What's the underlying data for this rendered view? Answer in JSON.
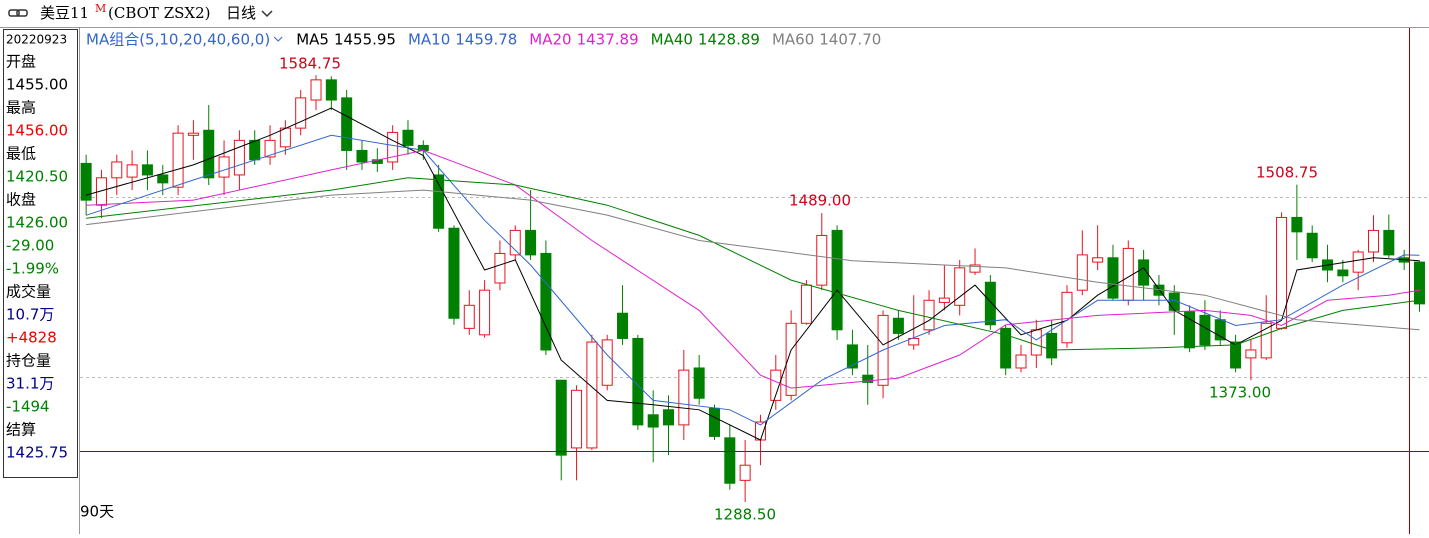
{
  "header": {
    "symbol": "美豆11",
    "mark": "M",
    "code": "(CBOT ZSX2)",
    "period": "日线"
  },
  "info_panel": {
    "date": "20220923",
    "rows": [
      {
        "label": "开盘",
        "value": "1455.00"
      },
      {
        "label": "最高",
        "value": "1456.00"
      },
      {
        "label": "最低",
        "value": "1420.50"
      },
      {
        "label": "收盘",
        "value": "1426.00",
        "extra": [
          "-29.00",
          "-1.99%"
        ]
      },
      {
        "label": "成交量",
        "value": "10.7万",
        "extra": [
          "+4828"
        ]
      },
      {
        "label": "持仓量",
        "value": "31.1万",
        "extra": [
          "-1494"
        ]
      },
      {
        "label": "结算",
        "value": "1425.75"
      }
    ]
  },
  "chart_data": {
    "type": "candlestick",
    "indicator": "MA组合(5,10,20,40,60,0)",
    "footer": "90天",
    "ylim": [
      1272.5,
      1617.5
    ],
    "xlim": [
      -0.4,
      88.6
    ],
    "up_color": "#e8141e",
    "down_color": "#008000",
    "annotations": [
      {
        "text": "1584.75",
        "color": "#d0021b"
      },
      {
        "text": "1489.00",
        "color": "#d0021b"
      },
      {
        "text": "1508.75",
        "color": "#d0021b"
      },
      {
        "text": "1373.00",
        "color": "#008000"
      },
      {
        "text": "1288.50",
        "color": "#008000"
      }
    ],
    "candles": [
      [
        1523.5,
        1529.5,
        1487.5,
        1498
      ],
      [
        1494.5,
        1519,
        1485.5,
        1513.5
      ],
      [
        1513.5,
        1529.5,
        1501.5,
        1524.5
      ],
      [
        1514,
        1532.5,
        1505,
        1522.5
      ],
      [
        1522.5,
        1532.5,
        1505,
        1515.5
      ],
      [
        1515.5,
        1522.5,
        1501.5,
        1510
      ],
      [
        1507,
        1550,
        1501.5,
        1544.5
      ],
      [
        1543,
        1553.5,
        1526,
        1544.5
      ],
      [
        1546.5,
        1564,
        1508.5,
        1513.5
      ],
      [
        1514,
        1539.5,
        1501.5,
        1528
      ],
      [
        1515.5,
        1546.5,
        1505,
        1539.5
      ],
      [
        1539.5,
        1546.5,
        1522.5,
        1526
      ],
      [
        1528,
        1550,
        1522.5,
        1539.5
      ],
      [
        1535,
        1553.5,
        1529.5,
        1548
      ],
      [
        1548,
        1574.5,
        1543,
        1569
      ],
      [
        1567.5,
        1584.75,
        1560.5,
        1581.5
      ],
      [
        1581.5,
        1584,
        1560.5,
        1567.5
      ],
      [
        1569,
        1574.5,
        1519,
        1532.5
      ],
      [
        1532.5,
        1539.5,
        1519,
        1524.5
      ],
      [
        1526,
        1534,
        1517.5,
        1523.5
      ],
      [
        1524.5,
        1550,
        1519,
        1545
      ],
      [
        1546.5,
        1553.5,
        1529.5,
        1536
      ],
      [
        1536,
        1539.5,
        1526,
        1532.5
      ],
      [
        1515.5,
        1522.5,
        1476,
        1478.5
      ],
      [
        1478.5,
        1480.5,
        1411.5,
        1416
      ],
      [
        1409,
        1435.5,
        1404.5,
        1425
      ],
      [
        1404.5,
        1442.5,
        1402.5,
        1435.5
      ],
      [
        1440.5,
        1470,
        1435.5,
        1461
      ],
      [
        1460,
        1480.5,
        1456.5,
        1477
      ],
      [
        1477,
        1505,
        1456.5,
        1460
      ],
      [
        1461,
        1470,
        1390.5,
        1394
      ],
      [
        1373,
        1373,
        1303.5,
        1321
      ],
      [
        1326,
        1369.5,
        1303.5,
        1366
      ],
      [
        1326,
        1404.5,
        1324.5,
        1399.5
      ],
      [
        1369.5,
        1404.5,
        1366,
        1401
      ],
      [
        1419.5,
        1439,
        1397.5,
        1402
      ],
      [
        1402,
        1404.5,
        1338.5,
        1342
      ],
      [
        1349,
        1366,
        1316,
        1340.5
      ],
      [
        1352.5,
        1362.5,
        1321,
        1342
      ],
      [
        1342,
        1394,
        1331.5,
        1380
      ],
      [
        1381.5,
        1390.5,
        1356,
        1360.5
      ],
      [
        1353.5,
        1356,
        1331.5,
        1334
      ],
      [
        1333,
        1342,
        1297,
        1301.5
      ],
      [
        1303.5,
        1331.5,
        1288.5,
        1314
      ],
      [
        1331.5,
        1349,
        1314,
        1344
      ],
      [
        1359,
        1390.5,
        1352.5,
        1380
      ],
      [
        1362.5,
        1421.5,
        1359,
        1412.5
      ],
      [
        1412.5,
        1442.5,
        1411.5,
        1439
      ],
      [
        1439,
        1489,
        1435.5,
        1473.5
      ],
      [
        1477,
        1480.5,
        1401,
        1408
      ],
      [
        1397.5,
        1408,
        1376.5,
        1381.5
      ],
      [
        1376.5,
        1397.5,
        1356,
        1371.5
      ],
      [
        1369.5,
        1421.5,
        1360.5,
        1418
      ],
      [
        1416,
        1421.5,
        1401,
        1405.5
      ],
      [
        1397.5,
        1432,
        1394,
        1402
      ],
      [
        1408,
        1435.5,
        1404.5,
        1428.5
      ],
      [
        1427,
        1453,
        1421.5,
        1430
      ],
      [
        1425,
        1456.5,
        1418,
        1451
      ],
      [
        1448,
        1464.5,
        1446,
        1453
      ],
      [
        1441,
        1446,
        1408,
        1411.5
      ],
      [
        1409,
        1411.5,
        1376.5,
        1381.5
      ],
      [
        1381.5,
        1397.5,
        1378.5,
        1390.5
      ],
      [
        1390.5,
        1415,
        1381.5,
        1408
      ],
      [
        1405.5,
        1415,
        1383.5,
        1388.5
      ],
      [
        1399,
        1439,
        1395.5,
        1434
      ],
      [
        1435.5,
        1477,
        1432,
        1460
      ],
      [
        1455,
        1480.5,
        1449.5,
        1458
      ],
      [
        1458,
        1467,
        1428.5,
        1430
      ],
      [
        1428.5,
        1470,
        1425,
        1464.5
      ],
      [
        1456.5,
        1463.5,
        1428.5,
        1439
      ],
      [
        1439,
        1446,
        1425,
        1432
      ],
      [
        1433.5,
        1439,
        1404.5,
        1421.5
      ],
      [
        1420.5,
        1425,
        1392.5,
        1395.5
      ],
      [
        1418,
        1428.5,
        1394,
        1397.5
      ],
      [
        1415,
        1421.5,
        1397.5,
        1401
      ],
      [
        1399.5,
        1404.5,
        1378.5,
        1381.5
      ],
      [
        1388.5,
        1401,
        1373,
        1394
      ],
      [
        1388.5,
        1432,
        1387,
        1412.5
      ],
      [
        1409,
        1489.5,
        1408,
        1486
      ],
      [
        1486,
        1508.75,
        1456.5,
        1476
      ],
      [
        1475,
        1480.5,
        1455,
        1458
      ],
      [
        1456.5,
        1467,
        1441,
        1449.5
      ],
      [
        1449.5,
        1456.5,
        1441,
        1445.5
      ],
      [
        1448,
        1463.5,
        1435.5,
        1462
      ],
      [
        1462,
        1487.5,
        1455,
        1477
      ],
      [
        1477,
        1488,
        1458,
        1460
      ],
      [
        1458,
        1463.5,
        1449.5,
        1455
      ],
      [
        1455,
        1456,
        1420.5,
        1426
      ],
      [
        1424,
        1432,
        1420,
        1428
      ]
    ],
    "series": [
      {
        "name": "MA5",
        "last": "1455.95",
        "color": "#000000",
        "x": [
          0,
          7,
          12,
          16,
          20,
          22,
          26,
          28,
          31,
          34,
          37,
          40,
          44,
          46,
          49,
          52,
          55,
          58,
          61,
          64,
          66,
          69,
          71,
          75,
          78,
          79,
          84,
          87
        ],
        "values": [
          1501.5,
          1522.5,
          1543,
          1562,
          1539.5,
          1529,
          1449.5,
          1456.5,
          1387,
          1359,
          1356,
          1352.5,
          1331.5,
          1394,
          1435.5,
          1397.5,
          1414.5,
          1439,
          1404.5,
          1414.5,
          1432,
          1451,
          1421.5,
          1397.5,
          1414.5,
          1449.5,
          1458,
          1456
        ]
      },
      {
        "name": "MA10",
        "last": "1459.78",
        "color": "#3366cc",
        "x": [
          0,
          7,
          16,
          22,
          26,
          29,
          34,
          37,
          42,
          44,
          48,
          52,
          56,
          60,
          62,
          66,
          71,
          75,
          78,
          82,
          86,
          87
        ],
        "values": [
          1487.5,
          1512,
          1543,
          1532.5,
          1484,
          1453,
          1390.5,
          1359,
          1352.5,
          1342,
          1373,
          1394,
          1411,
          1415,
          1401,
          1428.5,
          1428.5,
          1411,
          1415,
          1439,
          1460,
          1459.8
        ]
      },
      {
        "name": "MA20",
        "last": "1437.89",
        "color": "#e020d0",
        "x": [
          0,
          7,
          16,
          22,
          28,
          33,
          40,
          44,
          46,
          53,
          57,
          60,
          66,
          73,
          76,
          78,
          81,
          85,
          87
        ],
        "values": [
          1494.5,
          1498,
          1519,
          1532.5,
          1508.5,
          1470,
          1421.5,
          1376.5,
          1367.5,
          1374.5,
          1390.5,
          1411.5,
          1418,
          1421.5,
          1418,
          1411,
          1428.5,
          1432,
          1435.5
        ]
      },
      {
        "name": "MA40",
        "last": "1428.89",
        "color": "#008000",
        "x": [
          0,
          16,
          21,
          28,
          34,
          40,
          46,
          53,
          60,
          63,
          70,
          75,
          78,
          82,
          87
        ],
        "values": [
          1485.5,
          1505,
          1513.5,
          1508.5,
          1494.5,
          1473.5,
          1442.5,
          1421.5,
          1404.5,
          1394,
          1395.5,
          1397.5,
          1409,
          1421.5,
          1428.5
        ]
      },
      {
        "name": "MA60",
        "last": "1407.70",
        "color": "#808080",
        "x": [
          0,
          16,
          22,
          29,
          34,
          40,
          50,
          60,
          66,
          73,
          79,
          87
        ],
        "values": [
          1481,
          1501.5,
          1505,
          1498,
          1487.6,
          1470,
          1456,
          1451,
          1441,
          1432,
          1415,
          1408
        ]
      }
    ]
  }
}
